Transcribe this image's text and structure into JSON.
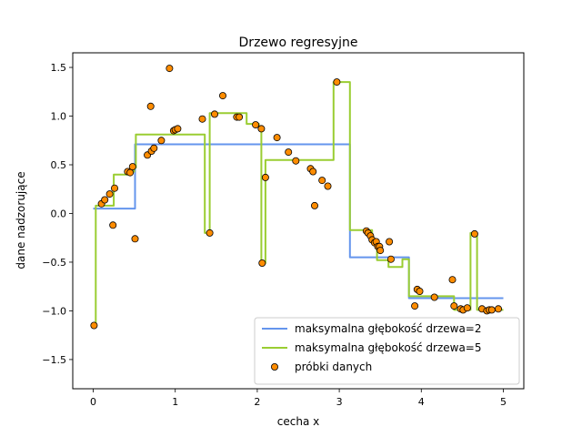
{
  "chart_data": {
    "type": "scatter",
    "title": "Drzewo regresyjne",
    "xlabel": "cecha x",
    "ylabel": "dane nadzorujące",
    "xlim": [
      -0.25,
      5.25
    ],
    "ylim": [
      -1.8,
      1.65
    ],
    "grid": false,
    "legend_position": "lower-right",
    "xticks": [
      {
        "value": 0,
        "label": "0"
      },
      {
        "value": 1,
        "label": "1"
      },
      {
        "value": 2,
        "label": "2"
      },
      {
        "value": 3,
        "label": "3"
      },
      {
        "value": 4,
        "label": "4"
      },
      {
        "value": 5,
        "label": "5"
      }
    ],
    "yticks": [
      {
        "value": 1.5,
        "label": "1.5"
      },
      {
        "value": 1.0,
        "label": "1.0"
      },
      {
        "value": 0.5,
        "label": "0.5"
      },
      {
        "value": 0.0,
        "label": "0.0"
      },
      {
        "value": -0.5,
        "label": "−0.5"
      },
      {
        "value": -1.0,
        "label": "−1.0"
      },
      {
        "value": -1.5,
        "label": "−1.5"
      }
    ],
    "series": [
      {
        "name": "maksymalna głębokość drzewa=2",
        "kind": "line",
        "color": "#6495ed",
        "x": [
          0.0,
          0.51,
          0.51,
          3.13,
          3.13,
          3.85,
          3.85,
          5.0
        ],
        "y": [
          0.05,
          0.05,
          0.71,
          0.71,
          -0.45,
          -0.45,
          -0.87,
          -0.87
        ]
      },
      {
        "name": "maksymalna głębokość drzewa=5",
        "kind": "line",
        "color": "#9acd32",
        "x": [
          0.0,
          0.03,
          0.03,
          0.25,
          0.25,
          0.42,
          0.42,
          0.5,
          0.5,
          0.52,
          0.52,
          1.36,
          1.36,
          1.42,
          1.42,
          1.87,
          1.87,
          2.02,
          2.02,
          2.05,
          2.05,
          2.1,
          2.1,
          2.93,
          2.93,
          3.13,
          3.13,
          3.4,
          3.4,
          3.46,
          3.46,
          3.6,
          3.6,
          3.77,
          3.77,
          3.85,
          3.85,
          4.4,
          4.4,
          4.6,
          4.6,
          4.68,
          4.68,
          5.0
        ],
        "y": [
          -1.15,
          -1.15,
          0.08,
          0.08,
          0.4,
          0.4,
          0.43,
          0.43,
          0.47,
          0.47,
          0.81,
          0.81,
          -0.2,
          -0.2,
          1.03,
          1.03,
          0.92,
          0.92,
          0.87,
          0.87,
          -0.51,
          -0.51,
          0.55,
          0.55,
          1.35,
          1.35,
          -0.17,
          -0.17,
          -0.28,
          -0.28,
          -0.48,
          -0.48,
          -0.55,
          -0.55,
          -0.47,
          -0.47,
          -0.85,
          -0.85,
          -0.99,
          -0.99,
          -0.2,
          -0.2,
          -0.99,
          -0.99
        ]
      },
      {
        "name": "próbki danych",
        "kind": "scatter",
        "color": "#ff8c00",
        "edgecolor": "#000000",
        "x": [
          0.01,
          0.1,
          0.14,
          0.2,
          0.24,
          0.26,
          0.42,
          0.45,
          0.48,
          0.51,
          0.66,
          0.7,
          0.71,
          0.74,
          0.83,
          0.93,
          0.98,
          1.0,
          1.03,
          1.33,
          1.42,
          1.48,
          1.58,
          1.75,
          1.78,
          1.98,
          2.05,
          2.06,
          2.1,
          2.24,
          2.38,
          2.47,
          2.65,
          2.68,
          2.7,
          2.79,
          2.86,
          2.97,
          3.33,
          3.35,
          3.38,
          3.4,
          3.43,
          3.45,
          3.47,
          3.49,
          3.5,
          3.61,
          3.63,
          3.92,
          3.95,
          3.98,
          4.16,
          4.38,
          4.4,
          4.48,
          4.51,
          4.56,
          4.65,
          4.74,
          4.8,
          4.83,
          4.86,
          4.94
        ],
        "y": [
          -1.15,
          0.1,
          0.14,
          0.2,
          -0.12,
          0.26,
          0.43,
          0.42,
          0.48,
          -0.26,
          0.6,
          1.1,
          0.64,
          0.67,
          0.75,
          1.49,
          0.85,
          0.86,
          0.87,
          0.97,
          -0.2,
          1.02,
          1.21,
          0.99,
          0.99,
          0.91,
          0.87,
          -0.51,
          0.37,
          0.78,
          0.63,
          0.54,
          0.46,
          0.43,
          0.08,
          0.34,
          0.28,
          1.35,
          -0.18,
          -0.2,
          -0.23,
          -0.27,
          -0.3,
          -0.29,
          -0.34,
          -0.34,
          -0.38,
          -0.29,
          -0.47,
          -0.95,
          -0.78,
          -0.8,
          -0.86,
          -0.68,
          -0.95,
          -0.98,
          -0.99,
          -0.97,
          -0.21,
          -0.98,
          -1.0,
          -0.99,
          -0.99,
          -0.98
        ]
      }
    ]
  }
}
